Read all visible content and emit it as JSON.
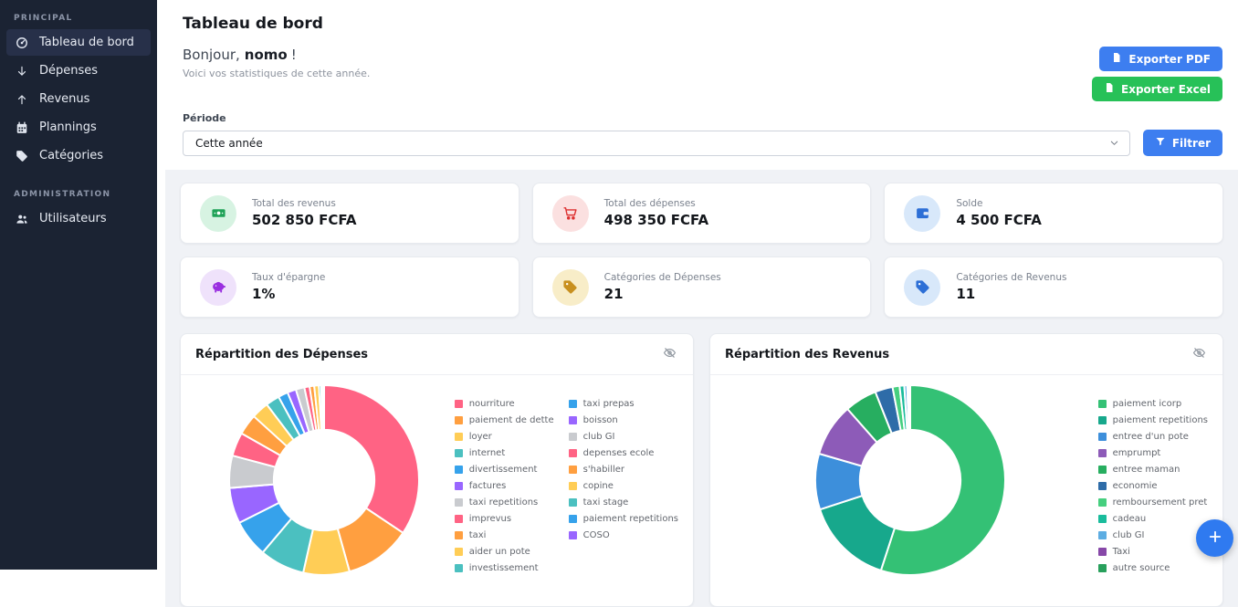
{
  "sidebar": {
    "sections": [
      {
        "label": "PRINCIPAL",
        "items": [
          {
            "label": "Tableau de bord",
            "icon": "speedometer-icon",
            "active": true
          },
          {
            "label": "Dépenses",
            "icon": "arrow-down-icon",
            "active": false
          },
          {
            "label": "Revenus",
            "icon": "arrow-up-icon",
            "active": false
          },
          {
            "label": "Plannings",
            "icon": "calendar-icon",
            "active": false
          },
          {
            "label": "Catégories",
            "icon": "tag-icon",
            "active": false
          }
        ]
      },
      {
        "label": "ADMINISTRATION",
        "items": [
          {
            "label": "Utilisateurs",
            "icon": "users-icon",
            "active": false
          }
        ]
      }
    ]
  },
  "header": {
    "title": "Tableau de bord",
    "greeting_prefix": "Bonjour,",
    "user_name": "nomo",
    "greeting_suffix": "!",
    "subtitle": "Voici vos statistiques de cette année.",
    "export_pdf_label": "Exporter PDF",
    "export_pdf_icon": "file-pdf-icon",
    "export_pdf_color": "#3d7ef0",
    "export_excel_label": "Exporter Excel",
    "export_excel_icon": "file-excel-icon",
    "export_excel_color": "#27c158"
  },
  "filter": {
    "label": "Période",
    "selected_value": "Cette année",
    "select_chevron": "chevron-down-icon",
    "button_label": "Filtrer",
    "button_icon": "funnel-icon",
    "button_color": "#3d7ef0"
  },
  "stats": [
    {
      "label": "Total des revenus",
      "value": "502 850 FCFA",
      "icon": "money-bill-icon",
      "icon_color": "#1fa257",
      "icon_bg": "#d7f3e2"
    },
    {
      "label": "Total des dépenses",
      "value": "498 350 FCFA",
      "icon": "cart-icon",
      "icon_color": "#dd3131",
      "icon_bg": "#fbe0e0"
    },
    {
      "label": "Solde",
      "value": "4 500 FCFA",
      "icon": "wallet-icon",
      "icon_color": "#2d6fd6",
      "icon_bg": "#d8e8fa"
    },
    {
      "label": "Taux d'épargne",
      "value": "1%",
      "icon": "piggy-bank-icon",
      "icon_color": "#9a2fe0",
      "icon_bg": "#efe2fb"
    },
    {
      "label": "Catégories de Dépenses",
      "value": "21",
      "icon": "tag-icon",
      "icon_color": "#c8901f",
      "icon_bg": "#f8edc8"
    },
    {
      "label": "Catégories de Revenus",
      "value": "11",
      "icon": "tag-icon",
      "icon_color": "#2d6fd6",
      "icon_bg": "#d8e8fa"
    }
  ],
  "chart_data": [
    {
      "type": "pie",
      "title": "Répartition des Dépenses",
      "toggle_icon": "eye-slash-icon",
      "legend_position": "right",
      "legend_rows": 11,
      "donut_cutout_ratio": 0.53,
      "categories": [
        "nourriture",
        "paiement de dette",
        "loyer",
        "internet",
        "divertissement",
        "factures",
        "taxi repetitions",
        "imprevus",
        "taxi",
        "aider un pote",
        "investissement",
        "taxi prepas",
        "boisson",
        "club GI",
        "depenses ecole",
        "s'habiller",
        "copine",
        "taxi stage",
        "paiement repetitions",
        "COSO"
      ],
      "values_percent": [
        35,
        11.5,
        8,
        7.8,
        6.5,
        6.2,
        5.6,
        4.1,
        3.6,
        3,
        2.4,
        1.7,
        1.5,
        1.5,
        0.9,
        0.8,
        0.8,
        0.4,
        0.3,
        0.2
      ],
      "colors": [
        "#FF6384",
        "#FF9F40",
        "#FFCD56",
        "#4BC0C0",
        "#36A2EB",
        "#9966FF",
        "#C9CBCF",
        "#FF6384",
        "#FF9F40",
        "#FFCD56",
        "#4BC0C0",
        "#36A2EB",
        "#9966FF",
        "#C9CBCF",
        "#FF6384",
        "#FF9F40",
        "#FFCD56",
        "#4BC0C0",
        "#36A2EB",
        "#9966FF"
      ]
    },
    {
      "type": "pie",
      "title": "Répartition des Revenus",
      "toggle_icon": "eye-slash-icon",
      "legend_position": "right",
      "legend_rows": 11,
      "donut_cutout_ratio": 0.53,
      "categories": [
        "paiement icorp",
        "paiement repetitions",
        "entree d'un pote",
        "emprumpt",
        "entree maman",
        "economie",
        "remboursement pret",
        "cadeau",
        "club GI",
        "Taxi",
        "autre source"
      ],
      "values_percent": [
        55,
        15,
        9.5,
        9,
        5.5,
        3,
        1.2,
        0.8,
        0.5,
        0.3,
        0.2
      ],
      "colors": [
        "#34c175",
        "#17a88c",
        "#3d8fdb",
        "#8d5bb8",
        "#27ae60",
        "#2e6ca8",
        "#46cf7f",
        "#1abc9c",
        "#5dade2",
        "#8748a8",
        "#28a05c"
      ]
    }
  ],
  "fab": {
    "icon": "plus-icon"
  }
}
